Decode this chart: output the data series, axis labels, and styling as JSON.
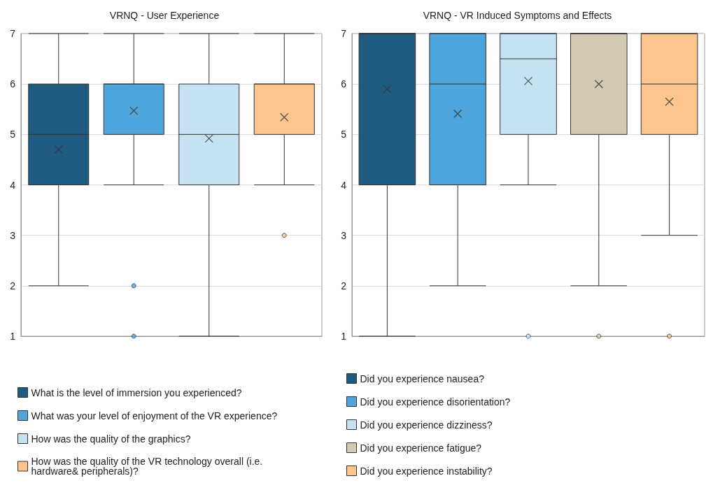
{
  "chart_data": [
    {
      "type": "box",
      "title": "VRNQ - User Experience",
      "categories": [
        null,
        null,
        null,
        null
      ],
      "series": [
        {
          "name": "What is the level of immersion you experienced?",
          "color": "#1f5a80",
          "boxes": [
            {
              "low": 2,
              "q1": 4,
              "median": 5,
              "q3": 6,
              "high": 7,
              "mean": 4.7
            },
            null,
            null,
            null
          ]
        },
        {
          "name": "What was your level of enjoyment of the VR experience?",
          "color": "#4ea5dc",
          "boxes": [
            null,
            {
              "low": 4,
              "q1": 5,
              "median": 6,
              "q3": 6,
              "high": 7,
              "mean": 5.47,
              "outliers": [
                2,
                1
              ]
            },
            null,
            null
          ]
        },
        {
          "name": "How was the quality of the graphics?",
          "color": "#c5e2f2",
          "boxes": [
            null,
            null,
            {
              "low": 1,
              "q1": 4,
              "median": 5,
              "q3": 6,
              "high": 7,
              "mean": 4.92
            },
            null
          ]
        },
        {
          "name": "How was the quality of the VR technology overall (i.e. hardware& peripherals)?",
          "color": "#fbc58d",
          "boxes": [
            null,
            null,
            null,
            {
              "low": 4,
              "q1": 5,
              "median": 6,
              "q3": 6,
              "high": 7,
              "mean": 5.34,
              "outliers": [
                3
              ]
            }
          ]
        }
      ],
      "ylim": [
        1,
        7
      ],
      "yticks": [
        1,
        2,
        3,
        4,
        5,
        6,
        7
      ],
      "grid": "y",
      "legend": "bottom"
    },
    {
      "type": "box",
      "title": "VRNQ - VR Induced Symptoms and Effects",
      "categories": [
        null,
        null,
        null,
        null,
        null
      ],
      "series": [
        {
          "name": "Did you experience nausea?",
          "color": "#1f5a80",
          "boxes": [
            {
              "low": 1,
              "q1": 4,
              "median": 7,
              "q3": 7,
              "high": 7,
              "mean": 5.9
            },
            null,
            null,
            null,
            null
          ]
        },
        {
          "name": "Did you experience disorientation?",
          "color": "#4ea5dc",
          "boxes": [
            null,
            {
              "low": 2,
              "q1": 4,
              "median": 6,
              "q3": 7,
              "high": 7,
              "mean": 5.41
            },
            null,
            null,
            null
          ]
        },
        {
          "name": "Did you experience dizziness?",
          "color": "#c5e2f2",
          "boxes": [
            null,
            null,
            {
              "low": 4,
              "q1": 5,
              "median": 6.5,
              "q3": 7,
              "high": 7,
              "mean": 6.06,
              "outliers": [
                1
              ]
            },
            null,
            null
          ]
        },
        {
          "name": "Did you experience fatigue?",
          "color": "#d3cab4",
          "boxes": [
            null,
            null,
            null,
            {
              "low": 2,
              "q1": 5,
              "median": 7,
              "q3": 7,
              "high": 7,
              "mean": 6.0,
              "outliers": [
                1
              ]
            },
            null
          ]
        },
        {
          "name": "Did you experience instability?",
          "color": "#fbc58d",
          "boxes": [
            null,
            null,
            null,
            null,
            {
              "low": 3,
              "q1": 5,
              "median": 6,
              "q3": 7,
              "high": 7,
              "mean": 5.65,
              "outliers": [
                1
              ]
            }
          ]
        }
      ],
      "ylim": [
        1,
        7
      ],
      "yticks": [
        1,
        2,
        3,
        4,
        5,
        6,
        7
      ],
      "grid": "y",
      "legend": "bottom"
    }
  ]
}
